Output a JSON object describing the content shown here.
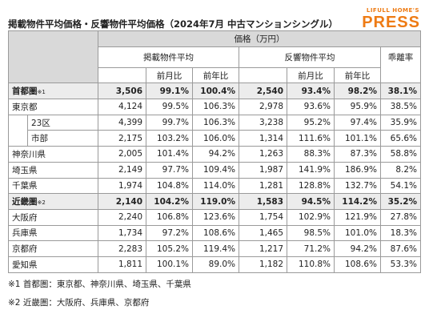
{
  "header": {
    "title": "掲載物件平均価格・反響物件平均価格（2024年7月 中古マンションシングル）",
    "logo_top": "LIFULL HOME'S",
    "logo_bottom": "PRESS"
  },
  "table": {
    "price_header": "価格（万円）",
    "listing_header": "掲載物件平均",
    "listing_sub": [
      "前月比",
      "前年比"
    ],
    "response_header": "反響物件平均",
    "response_sub": [
      "前月比",
      "前年比"
    ],
    "gap_header": "乖離率",
    "rows": [
      {
        "label": "首都圏",
        "note": "※1",
        "highlight": true,
        "cells": [
          "3,506",
          "99.1%",
          "100.4%",
          "2,540",
          "93.4%",
          "98.2%",
          "38.1%"
        ]
      },
      {
        "label": "東京都",
        "cells": [
          "4,124",
          "99.5%",
          "106.3%",
          "2,978",
          "93.6%",
          "95.9%",
          "38.5%"
        ],
        "sub_rows": [
          {
            "label": "23区",
            "cells": [
              "4,399",
              "99.7%",
              "106.3%",
              "3,238",
              "95.2%",
              "97.4%",
              "35.9%"
            ]
          },
          {
            "label": "市部",
            "cells": [
              "2,175",
              "103.2%",
              "106.0%",
              "1,314",
              "111.6%",
              "101.1%",
              "65.6%"
            ]
          }
        ]
      },
      {
        "label": "神奈川県",
        "cells": [
          "2,005",
          "101.4%",
          "94.2%",
          "1,263",
          "88.3%",
          "87.3%",
          "58.8%"
        ]
      },
      {
        "label": "埼玉県",
        "cells": [
          "2,149",
          "97.7%",
          "109.4%",
          "1,987",
          "141.9%",
          "186.9%",
          "8.2%"
        ]
      },
      {
        "label": "千葉県",
        "cells": [
          "1,974",
          "104.8%",
          "114.0%",
          "1,281",
          "128.8%",
          "132.7%",
          "54.1%"
        ]
      },
      {
        "label": "近畿圏",
        "note": "※2",
        "highlight": true,
        "cells": [
          "2,140",
          "104.2%",
          "119.0%",
          "1,583",
          "94.5%",
          "114.2%",
          "35.2%"
        ]
      },
      {
        "label": "大阪府",
        "cells": [
          "2,240",
          "106.8%",
          "123.6%",
          "1,754",
          "102.9%",
          "121.9%",
          "27.8%"
        ]
      },
      {
        "label": "兵庫県",
        "cells": [
          "1,734",
          "97.2%",
          "108.6%",
          "1,465",
          "98.5%",
          "101.0%",
          "18.3%"
        ]
      },
      {
        "label": "京都府",
        "cells": [
          "2,283",
          "105.2%",
          "119.4%",
          "1,217",
          "71.2%",
          "94.2%",
          "87.6%"
        ]
      },
      {
        "label": "愛知県",
        "cells": [
          "1,811",
          "100.1%",
          "89.0%",
          "1,182",
          "110.8%",
          "108.6%",
          "53.3%"
        ]
      }
    ]
  },
  "footnotes": [
    "※1 首都圏：東京都、神奈川県、埼玉県、千葉県",
    "※2 近畿圏：大阪府、兵庫県、京都府"
  ]
}
